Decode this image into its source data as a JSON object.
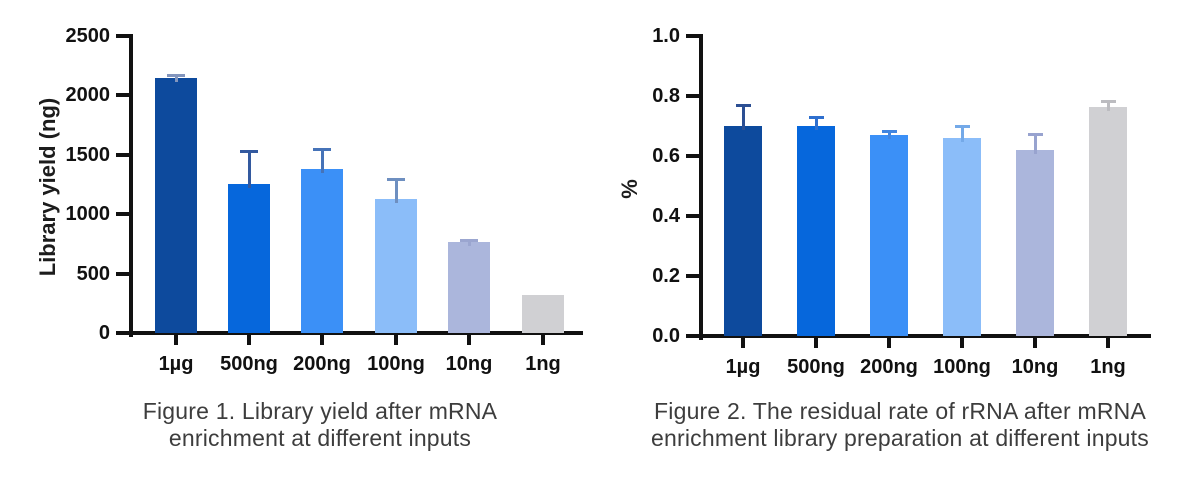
{
  "page": {
    "background": "#ffffff",
    "text_color": "#3d3d3d",
    "axis_color": "#111111"
  },
  "chart_data": [
    {
      "type": "bar",
      "title": "",
      "caption_lines": [
        "Figure 1. Library yield after mRNA",
        "enrichment at different inputs"
      ],
      "ylabel": "Library yield (ng)",
      "xlabel": "",
      "categories": [
        "1µg",
        "500ng",
        "200ng",
        "100ng",
        "10ng",
        "1ng"
      ],
      "values": [
        2150,
        1255,
        1380,
        1130,
        765,
        320
      ],
      "errors_plus": [
        25,
        275,
        170,
        165,
        15,
        0
      ],
      "ylim": [
        0,
        2500
      ],
      "ytick_labels": [
        "0",
        "500",
        "1000",
        "1500",
        "2000",
        "2500"
      ],
      "grid": false,
      "legend": "none",
      "bar_colors": [
        "#0d4a9d",
        "#0667dc",
        "#3b90f7",
        "#8bbdf9",
        "#abb6dc",
        "#d0d0d3"
      ],
      "error_colors": [
        "#8295bd",
        "#33599f",
        "#4673b8",
        "#6e8fc0",
        "#9ba6d0",
        "#bcbcc0"
      ]
    },
    {
      "type": "bar",
      "title": "",
      "caption_lines": [
        "Figure 2. The residual rate of rRNA after mRNA",
        "enrichment library preparation at different inputs"
      ],
      "ylabel": "%",
      "xlabel": "",
      "categories": [
        "1µg",
        "500ng",
        "200ng",
        "100ng",
        "10ng",
        "1ng"
      ],
      "values": [
        0.7,
        0.7,
        0.67,
        0.66,
        0.62,
        0.765
      ],
      "errors_plus": [
        0.07,
        0.03,
        0.015,
        0.04,
        0.055,
        0.02
      ],
      "ylim": [
        0.0,
        1.0
      ],
      "ytick_labels": [
        "0.0",
        "0.2",
        "0.4",
        "0.6",
        "0.8",
        "1.0"
      ],
      "grid": false,
      "legend": "none",
      "bar_colors": [
        "#0d4a9d",
        "#0667dc",
        "#3b90f7",
        "#8bbdf9",
        "#abb6dc",
        "#d0d0d3"
      ],
      "error_colors": [
        "#2c4f93",
        "#2e6fce",
        "#4286e0",
        "#74a9e8",
        "#98a3cf",
        "#bcbcc0"
      ]
    }
  ]
}
